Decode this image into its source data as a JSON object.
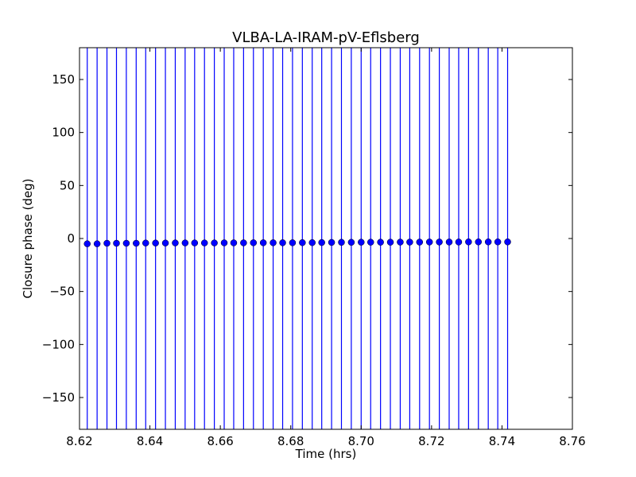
{
  "chart_data": {
    "type": "scatter",
    "title": "VLBA-LA-IRAM-pV-Eflsberg",
    "xlabel": "Time (hrs)",
    "ylabel": "Closure phase (deg)",
    "xlim": [
      8.62,
      8.76
    ],
    "ylim": [
      -180,
      180
    ],
    "xticks": [
      8.62,
      8.64,
      8.66,
      8.68,
      8.7,
      8.72,
      8.74,
      8.76
    ],
    "xtick_labels": [
      "8.62",
      "8.64",
      "8.66",
      "8.68",
      "8.70",
      "8.72",
      "8.74",
      "8.76"
    ],
    "yticks": [
      -150,
      -100,
      -50,
      0,
      50,
      100,
      150
    ],
    "ytick_labels": [
      "−150",
      "−100",
      "−50",
      "0",
      "50",
      "100",
      "150"
    ],
    "grid": false,
    "legend": "none",
    "marker_color": "#0000ff",
    "errorbar_color": "#0000ff",
    "errorbars_span_full_range": true,
    "series": [
      {
        "x": [
          8.6222,
          8.625,
          8.6278,
          8.6305,
          8.6333,
          8.6361,
          8.6388,
          8.6416,
          8.6444,
          8.6472,
          8.65,
          8.6527,
          8.6555,
          8.6583,
          8.6611,
          8.6638,
          8.6666,
          8.6694,
          8.6722,
          8.675,
          8.6777,
          8.6805,
          8.6833,
          8.6861,
          8.6888,
          8.6916,
          8.6944,
          8.6972,
          8.7,
          8.7027,
          8.7055,
          8.7083,
          8.7111,
          8.7138,
          8.7166,
          8.7194,
          8.7222,
          8.725,
          8.7277,
          8.7305,
          8.7333,
          8.7361,
          8.7388,
          8.7416
        ],
        "y": [
          -5.0,
          -5.0,
          -4.5,
          -4.5,
          -4.5,
          -4.5,
          -4.3,
          -4.3,
          -4.3,
          -4.2,
          -4.2,
          -4.2,
          -4.2,
          -4.2,
          -4.1,
          -4.1,
          -4.1,
          -4.0,
          -4.0,
          -4.0,
          -4.0,
          -4.0,
          -3.9,
          -3.9,
          -3.8,
          -3.7,
          -3.6,
          -3.6,
          -3.5,
          -3.5,
          -3.5,
          -3.5,
          -3.4,
          -3.4,
          -3.4,
          -3.3,
          -3.3,
          -3.3,
          -3.3,
          -3.2,
          -3.2,
          -3.2,
          -3.2,
          -3.2
        ]
      }
    ]
  }
}
